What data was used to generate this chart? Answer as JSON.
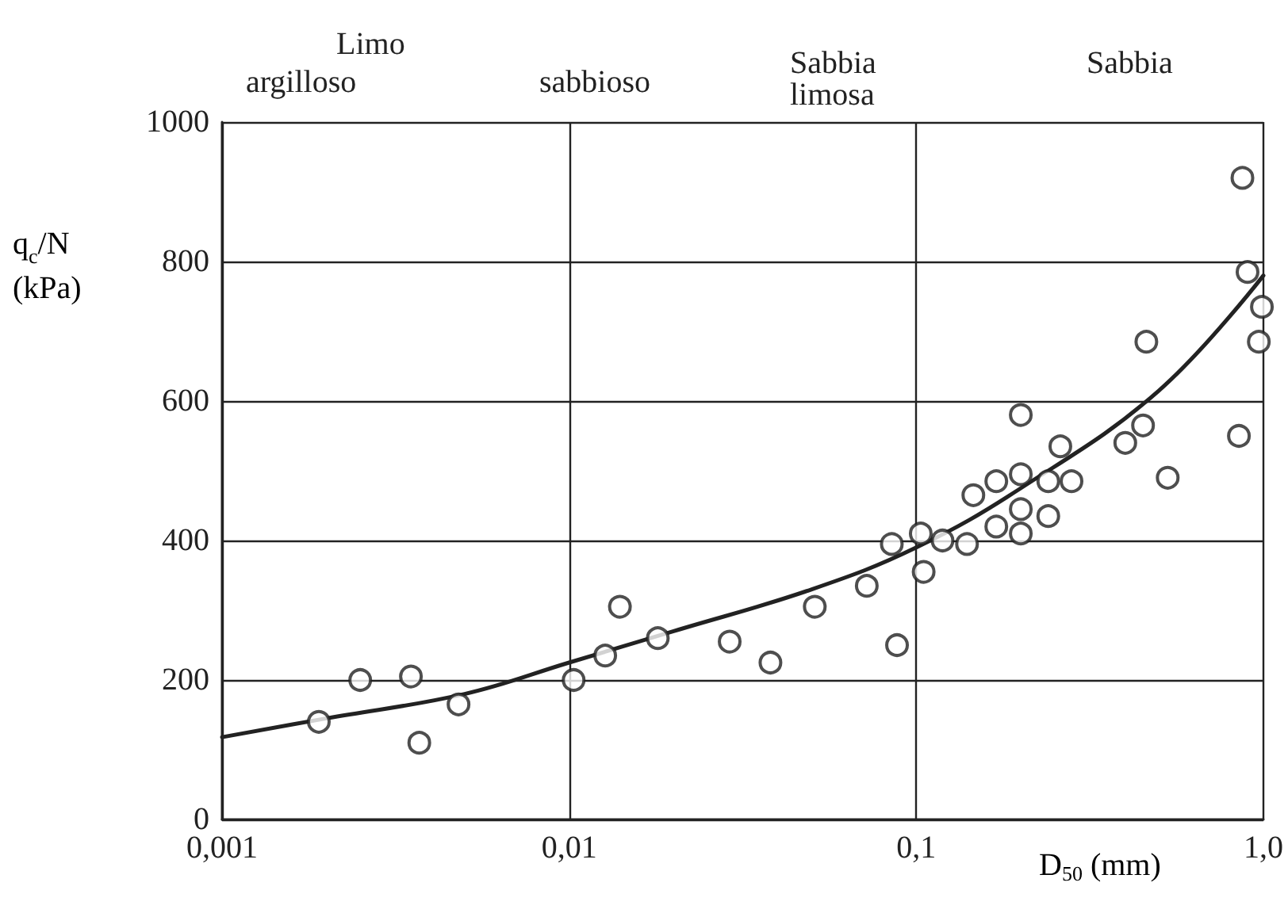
{
  "chart_data": {
    "type": "scatter",
    "xlabel": "D$_{50}$ (mm)",
    "ylabel": "q$_{c}$/N (kPa)",
    "annotations": [
      "Limo",
      "argilloso",
      "sabbioso",
      "Sabbia\nlimosa",
      "Sabbia"
    ],
    "log": "x",
    "xlim": [
      0.001,
      1
    ],
    "xticks": [
      {
        "value": 0.001,
        "label": "0,001"
      },
      {
        "value": 0.01,
        "label": "0,01"
      },
      {
        "value": 0.1,
        "label": "0,1"
      },
      {
        "value": 1,
        "label": "1,0"
      }
    ],
    "ylim": [
      0,
      1000
    ],
    "yticks": [
      0,
      200,
      400,
      600,
      800,
      1000
    ],
    "grid": true,
    "marker": "circle",
    "series": [
      {
        "color": "#222222",
        "x": [
          0.0019,
          0.0025,
          0.0035,
          0.0037,
          0.0048,
          0.0103,
          0.0127,
          0.014,
          0.018,
          0.029,
          0.038,
          0.051,
          0.072,
          0.085,
          0.088,
          0.103,
          0.105,
          0.119,
          0.14,
          0.146,
          0.17,
          0.17,
          0.2,
          0.2,
          0.2,
          0.2,
          0.24,
          0.24,
          0.26,
          0.28,
          0.4,
          0.45,
          0.46,
          0.53,
          0.85,
          0.87,
          0.9,
          0.97,
          0.99
        ],
        "values": [
          140,
          200,
          205,
          110,
          165,
          200,
          235,
          305,
          260,
          255,
          225,
          305,
          335,
          395,
          250,
          410,
          355,
          400,
          395,
          465,
          485,
          420,
          580,
          495,
          445,
          410,
          485,
          435,
          535,
          485,
          540,
          565,
          685,
          490,
          550,
          920,
          785,
          685,
          735
        ]
      },
      {
        "type": "line",
        "color": "#222222",
        "line_style": "solid",
        "marker": "none",
        "x": [
          0.001,
          0.002,
          0.005,
          0.01,
          0.02,
          0.05,
          0.1,
          0.2,
          0.5,
          1
        ],
        "values": [
          118,
          145,
          180,
          225,
          270,
          330,
          390,
          475,
          615,
          780
        ]
      }
    ]
  }
}
